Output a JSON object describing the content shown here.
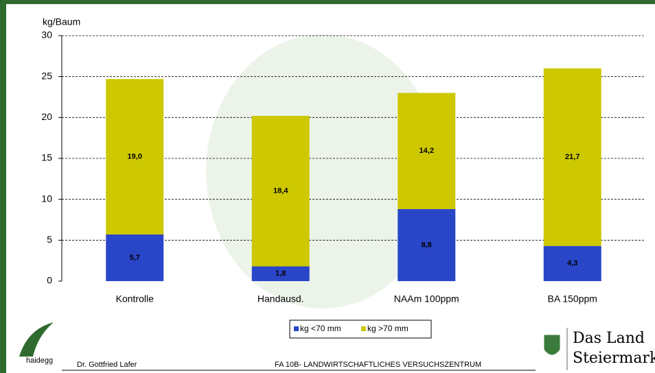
{
  "chart_data": {
    "type": "stacked_bar",
    "y_label": "kg/Baum",
    "categories": [
      "Kontrolle",
      "Handausd.",
      "NAAm 100ppm",
      "BA 150ppm"
    ],
    "series": [
      {
        "name": "kg <70 mm",
        "color": "#2a46c8",
        "values": [
          5.7,
          1.8,
          8.8,
          4.3
        ],
        "value_labels": [
          "5,7",
          "1,8",
          "8,8",
          "4,3"
        ]
      },
      {
        "name": "kg >70 mm",
        "color": "#cdc800",
        "values": [
          19.0,
          18.4,
          14.2,
          21.7
        ],
        "value_labels": [
          "19,0",
          "18,4",
          "14,2",
          "21,7"
        ]
      }
    ],
    "ylim": [
      0,
      30
    ],
    "yticks": [
      0,
      5,
      10,
      15,
      20,
      25,
      30
    ],
    "grid": true,
    "legend": "bottom"
  },
  "footer": {
    "logo_text": "haidegg",
    "author": "Dr. Gottfried Lafer",
    "institute": "FA 10B- LANDWIRTSCHAFTLICHES VERSUCHSZENTRUM",
    "brand_line1": "Das Land",
    "brand_line2": "Steiermark"
  }
}
